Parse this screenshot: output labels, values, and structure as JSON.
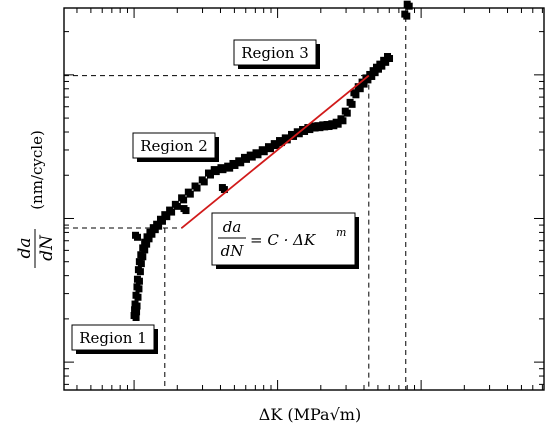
{
  "chart_data": {
    "type": "scatter",
    "xlabel": "ΔK (MPa√m)",
    "ylabel_fraction": {
      "numerator": "da",
      "denominator": "dN"
    },
    "ylabel_unit": "(nm/cycle)",
    "log_scale": true,
    "xlim": [
      0,
      100
    ],
    "ylim": [
      0,
      100
    ],
    "grid": false,
    "regions": [
      "Region 1",
      "Region 2",
      "Region 3"
    ],
    "equation": {
      "numerator": "da",
      "denominator": "dN",
      "rhs": "= C · ΔK",
      "exponent": "m"
    },
    "fit_line": {
      "x": [
        24.5,
        63.5
      ],
      "y": [
        42.4,
        82.3
      ]
    },
    "threshold_lines": {
      "lower": {
        "x": 21.0,
        "y": 42.4
      },
      "upper": {
        "x": 63.5,
        "y": 82.3
      },
      "fracture_x": 71.2
    },
    "series": [
      {
        "values_x": [
          14.6,
          14.7,
          14.8,
          15.0,
          15.2,
          15.3,
          15.5,
          15.7,
          16.0,
          16.4,
          16.8,
          17.3,
          17.9,
          18.6,
          19.3,
          20.1,
          21.0,
          22.0,
          23.2,
          24.5,
          25.9,
          27.3,
          28.8,
          30.1,
          31.3,
          32.7,
          34.1,
          35.2,
          36.4,
          37.6,
          38.8,
          40.0,
          41.3,
          42.6,
          43.8,
          44.9,
          46.1,
          47.4,
          48.6,
          49.7,
          50.8,
          51.9,
          52.9,
          53.9,
          54.8,
          55.8,
          56.7,
          57.7,
          58.6,
          59.6,
          60.4,
          61.3,
          62.1,
          62.9,
          63.7,
          64.4,
          65.1,
          65.8,
          66.6,
          67.4,
          14.9,
          25.0,
          33.0,
          71.0,
          71.5
        ],
        "values_y": [
          19.5,
          21.0,
          22.5,
          24.8,
          27.0,
          29.0,
          31.5,
          33.6,
          35.4,
          37.2,
          38.7,
          40.1,
          41.3,
          42.5,
          43.4,
          44.7,
          45.9,
          47.1,
          48.6,
          50.3,
          51.8,
          53.4,
          55.0,
          56.8,
          57.7,
          58.2,
          58.6,
          59.3,
          60.0,
          60.9,
          61.5,
          62.1,
          62.9,
          63.7,
          64.5,
          65.3,
          66.0,
          66.9,
          67.6,
          68.2,
          68.7,
          69.1,
          69.2,
          69.4,
          69.5,
          69.7,
          70.1,
          71.0,
          73.0,
          75.3,
          77.8,
          79.4,
          80.6,
          81.7,
          82.6,
          83.6,
          84.5,
          85.3,
          86.3,
          87.3,
          40.5,
          47.5,
          53.0,
          98.4,
          101.0
        ]
      }
    ]
  }
}
